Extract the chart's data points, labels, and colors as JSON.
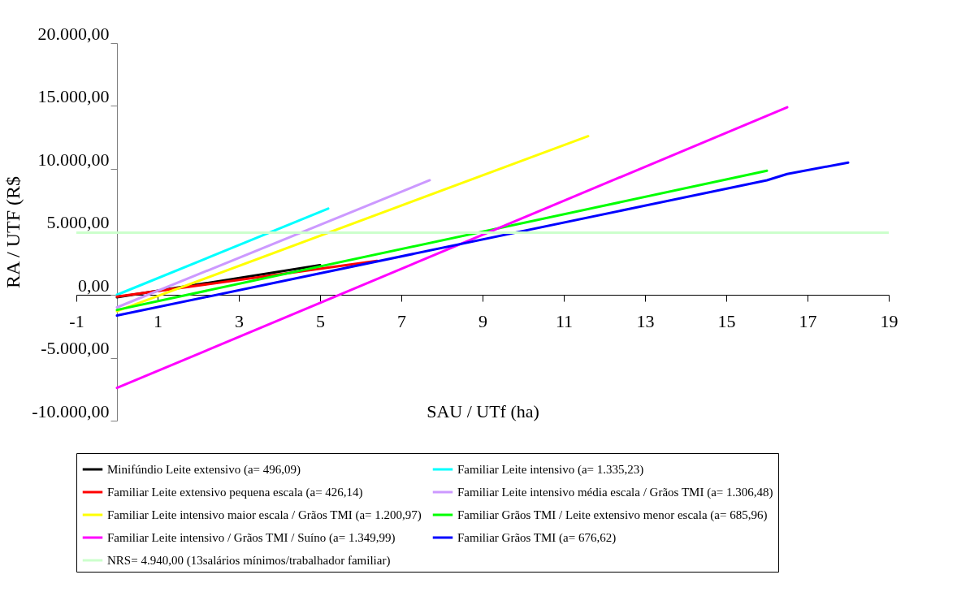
{
  "chart_data": {
    "type": "line",
    "xlabel": "SAU / UTf (ha)",
    "ylabel": "RA / UTF (R$",
    "xlim": [
      -1,
      19
    ],
    "xticks": [
      -1,
      1,
      3,
      5,
      7,
      9,
      11,
      13,
      15,
      17,
      19
    ],
    "ylim": [
      -10000,
      20000
    ],
    "yticks": [
      {
        "value": -10000,
        "label": "-10.000,00"
      },
      {
        "value": -5000,
        "label": "-5.000,00"
      },
      {
        "value": 0,
        "label": "0,00"
      },
      {
        "value": 5000,
        "label": "5.000,00"
      },
      {
        "value": 10000,
        "label": "10.000,00"
      },
      {
        "value": 15000,
        "label": "15.000,00"
      },
      {
        "value": 20000,
        "label": "20.000,00"
      }
    ],
    "grid": false,
    "legend": "bottom",
    "marker": "none",
    "line_style": "solid",
    "series": [
      {
        "name": "Minifúndio Leite extensivo (a= 496,09)",
        "color": "#000000",
        "x": [
          0,
          5
        ],
        "values": [
          -200,
          2350
        ]
      },
      {
        "name": "Familiar Leite intensivo (a= 1.335,23)",
        "color": "#00ffff",
        "x": [
          0,
          5.2
        ],
        "values": [
          0,
          6850
        ]
      },
      {
        "name": "Familiar Leite extensivo pequena escala (a= 426,14)",
        "color": "#ff0000",
        "x": [
          0,
          6.4
        ],
        "values": [
          -150,
          2700
        ]
      },
      {
        "name": "Familiar Leite intensivo média escala / Grãos TMI (a= 1.306,48)",
        "color": "#cc99ff",
        "x": [
          0,
          7.7
        ],
        "values": [
          -1000,
          9100
        ]
      },
      {
        "name": "Familiar Leite intensivo maior escala / Grãos TMI (a= 1.200,97)",
        "color": "#ffff00",
        "x": [
          0,
          11.6
        ],
        "values": [
          -1300,
          12600
        ]
      },
      {
        "name": "Familiar Grãos TMI / Leite extensivo menor escala (a= 685,96)",
        "color": "#00ff00",
        "x": [
          0,
          16
        ],
        "values": [
          -1200,
          9850
        ]
      },
      {
        "name": "Familiar Leite intensivo / Grãos TMI / Suíno (a= 1.349,99)",
        "color": "#ff00ff",
        "x": [
          0,
          16.5
        ],
        "values": [
          -7400,
          14900
        ]
      },
      {
        "name": "Familiar Grãos TMI (a= 676,62)",
        "color": "#0000ff",
        "x": [
          0,
          16,
          16.5,
          18
        ],
        "values": [
          -1650,
          9100,
          9600,
          10500
        ]
      }
    ],
    "ref_lines": [
      {
        "axis": "y",
        "value": 4940,
        "label": "NRS= 4.940,00 (13salários mínimos/trabalhador familiar)",
        "color": "#ccffcc"
      }
    ]
  }
}
